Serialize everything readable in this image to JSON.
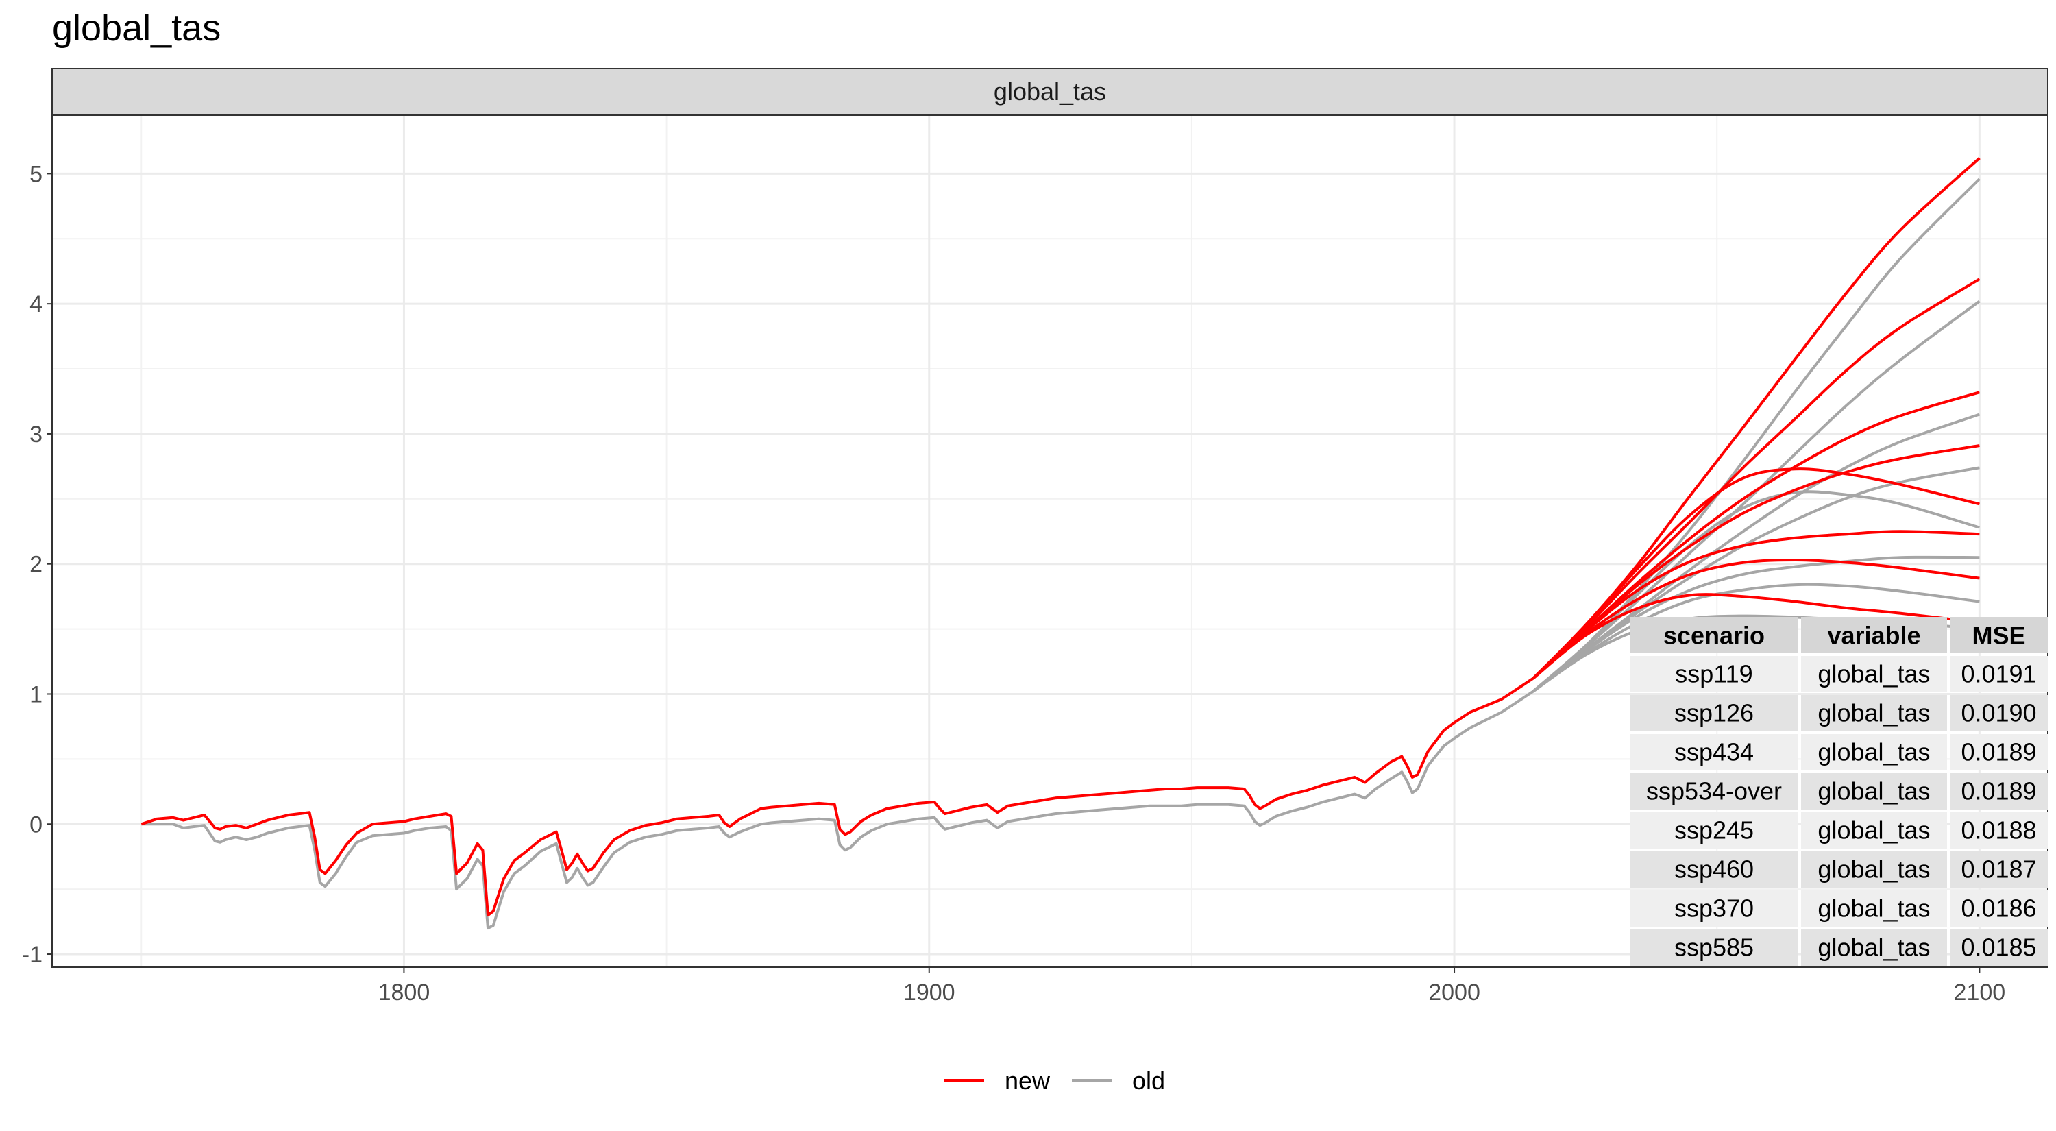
{
  "title": "global_tas",
  "chart_data": {
    "type": "line",
    "facet_label": "global_tas",
    "title": "global_tas",
    "xlabel": "",
    "ylabel": "",
    "xlim": [
      1733,
      2113
    ],
    "ylim": [
      -1.1,
      5.45
    ],
    "xticks": [
      1800,
      1900,
      2000,
      2100
    ],
    "yticks": [
      -1,
      0,
      1,
      2,
      3,
      4,
      5
    ],
    "grid": true,
    "legend_position": "bottom",
    "legend": [
      {
        "name": "new",
        "color": "#ff0000"
      },
      {
        "name": "old",
        "color": "#a6a6a6"
      }
    ],
    "historical": {
      "x": [
        1750,
        1753,
        1756,
        1758,
        1760,
        1762,
        1764,
        1765,
        1766,
        1768,
        1770,
        1772,
        1774,
        1776,
        1778,
        1780,
        1782,
        1783,
        1784,
        1785,
        1787,
        1789,
        1791,
        1794,
        1797,
        1800,
        1802,
        1805,
        1808,
        1809,
        1810,
        1812,
        1814,
        1815,
        1816,
        1817,
        1819,
        1821,
        1823,
        1826,
        1829,
        1830,
        1831,
        1832,
        1833,
        1834,
        1835,
        1836,
        1838,
        1840,
        1843,
        1846,
        1849,
        1852,
        1855,
        1858,
        1860,
        1861,
        1862,
        1864,
        1866,
        1868,
        1870,
        1873,
        1876,
        1879,
        1882,
        1883,
        1884,
        1885,
        1887,
        1889,
        1892,
        1895,
        1898,
        1901,
        1902,
        1903,
        1905,
        1908,
        1911,
        1912,
        1913,
        1915,
        1918,
        1921,
        1924,
        1927,
        1930,
        1933,
        1936,
        1939,
        1942,
        1945,
        1948,
        1951,
        1954,
        1957,
        1960,
        1961,
        1962,
        1963,
        1964,
        1966,
        1969,
        1972,
        1975,
        1978,
        1981,
        1983,
        1985,
        1988,
        1990,
        1991,
        1992,
        1993,
        1995,
        1998,
        2000,
        2003,
        2006,
        2009,
        2012,
        2015
      ],
      "new": [
        0.0,
        0.04,
        0.05,
        0.03,
        0.05,
        0.07,
        -0.03,
        -0.04,
        -0.02,
        -0.01,
        -0.03,
        0.0,
        0.03,
        0.05,
        0.07,
        0.08,
        0.09,
        -0.1,
        -0.35,
        -0.38,
        -0.28,
        -0.16,
        -0.07,
        0.0,
        0.01,
        0.02,
        0.04,
        0.06,
        0.08,
        0.06,
        -0.38,
        -0.3,
        -0.15,
        -0.2,
        -0.7,
        -0.67,
        -0.42,
        -0.28,
        -0.22,
        -0.12,
        -0.06,
        -0.2,
        -0.35,
        -0.3,
        -0.23,
        -0.3,
        -0.36,
        -0.34,
        -0.22,
        -0.12,
        -0.05,
        -0.01,
        0.01,
        0.04,
        0.05,
        0.06,
        0.07,
        0.01,
        -0.02,
        0.04,
        0.08,
        0.12,
        0.13,
        0.14,
        0.15,
        0.16,
        0.15,
        -0.04,
        -0.08,
        -0.06,
        0.02,
        0.07,
        0.12,
        0.14,
        0.16,
        0.17,
        0.12,
        0.08,
        0.1,
        0.13,
        0.15,
        0.12,
        0.09,
        0.14,
        0.16,
        0.18,
        0.2,
        0.21,
        0.22,
        0.23,
        0.24,
        0.25,
        0.26,
        0.27,
        0.27,
        0.28,
        0.28,
        0.28,
        0.27,
        0.22,
        0.15,
        0.12,
        0.14,
        0.19,
        0.23,
        0.26,
        0.3,
        0.33,
        0.36,
        0.32,
        0.39,
        0.48,
        0.52,
        0.45,
        0.36,
        0.38,
        0.56,
        0.72,
        0.78,
        0.86,
        0.91,
        0.96,
        1.04,
        1.12
      ],
      "old": [
        0.0,
        0.0,
        0.0,
        -0.03,
        -0.02,
        -0.01,
        -0.13,
        -0.14,
        -0.12,
        -0.1,
        -0.12,
        -0.1,
        -0.07,
        -0.05,
        -0.03,
        -0.02,
        -0.01,
        -0.2,
        -0.45,
        -0.48,
        -0.38,
        -0.25,
        -0.14,
        -0.09,
        -0.08,
        -0.07,
        -0.05,
        -0.03,
        -0.02,
        -0.05,
        -0.5,
        -0.42,
        -0.27,
        -0.32,
        -0.8,
        -0.78,
        -0.52,
        -0.38,
        -0.32,
        -0.21,
        -0.15,
        -0.3,
        -0.45,
        -0.41,
        -0.34,
        -0.41,
        -0.47,
        -0.45,
        -0.33,
        -0.22,
        -0.14,
        -0.1,
        -0.08,
        -0.05,
        -0.04,
        -0.03,
        -0.02,
        -0.07,
        -0.1,
        -0.06,
        -0.03,
        0.0,
        0.01,
        0.02,
        0.03,
        0.04,
        0.03,
        -0.16,
        -0.2,
        -0.18,
        -0.1,
        -0.05,
        0.0,
        0.02,
        0.04,
        0.05,
        0.0,
        -0.04,
        -0.02,
        0.01,
        0.03,
        0.0,
        -0.03,
        0.02,
        0.04,
        0.06,
        0.08,
        0.09,
        0.1,
        0.11,
        0.12,
        0.13,
        0.14,
        0.14,
        0.14,
        0.15,
        0.15,
        0.15,
        0.14,
        0.09,
        0.02,
        -0.01,
        0.01,
        0.06,
        0.1,
        0.13,
        0.17,
        0.2,
        0.23,
        0.2,
        0.27,
        0.35,
        0.4,
        0.33,
        0.24,
        0.27,
        0.45,
        0.6,
        0.66,
        0.74,
        0.8,
        0.86,
        0.94,
        1.02
      ]
    },
    "projection_x": [
      2015,
      2025,
      2035,
      2045,
      2055,
      2065,
      2075,
      2085,
      2100
    ],
    "scenarios": [
      {
        "name": "ssp119",
        "new": [
          1.12,
          1.45,
          1.66,
          1.76,
          1.75,
          1.71,
          1.66,
          1.62,
          1.55
        ],
        "old": [
          1.02,
          1.3,
          1.49,
          1.58,
          1.6,
          1.59,
          1.57,
          1.55,
          1.5
        ]
      },
      {
        "name": "ssp126",
        "new": [
          1.12,
          1.46,
          1.73,
          1.92,
          2.01,
          2.03,
          2.01,
          1.97,
          1.89
        ],
        "old": [
          1.02,
          1.31,
          1.55,
          1.72,
          1.8,
          1.84,
          1.83,
          1.79,
          1.71
        ]
      },
      {
        "name": "ssp434",
        "new": [
          1.12,
          1.48,
          1.8,
          2.02,
          2.14,
          2.2,
          2.23,
          2.25,
          2.23
        ],
        "old": [
          1.02,
          1.33,
          1.6,
          1.8,
          1.92,
          1.98,
          2.02,
          2.05,
          2.05
        ]
      },
      {
        "name": "ssp534-over",
        "new": [
          1.12,
          1.52,
          1.97,
          2.38,
          2.66,
          2.73,
          2.69,
          2.61,
          2.46
        ],
        "old": [
          1.02,
          1.37,
          1.77,
          2.15,
          2.43,
          2.55,
          2.53,
          2.46,
          2.28
        ]
      },
      {
        "name": "ssp245",
        "new": [
          1.12,
          1.48,
          1.84,
          2.14,
          2.39,
          2.57,
          2.71,
          2.81,
          2.91
        ],
        "old": [
          1.02,
          1.33,
          1.63,
          1.9,
          2.14,
          2.34,
          2.51,
          2.63,
          2.74
        ]
      },
      {
        "name": "ssp460",
        "new": [
          1.12,
          1.49,
          1.86,
          2.2,
          2.5,
          2.75,
          2.97,
          3.14,
          3.32
        ],
        "old": [
          1.02,
          1.34,
          1.65,
          1.96,
          2.25,
          2.52,
          2.75,
          2.94,
          3.15
        ]
      },
      {
        "name": "ssp370",
        "new": [
          1.12,
          1.51,
          1.93,
          2.33,
          2.74,
          3.12,
          3.5,
          3.82,
          4.19
        ],
        "old": [
          1.02,
          1.36,
          1.72,
          2.09,
          2.46,
          2.85,
          3.23,
          3.57,
          4.02
        ]
      },
      {
        "name": "ssp585",
        "new": [
          1.12,
          1.53,
          2.0,
          2.53,
          3.05,
          3.58,
          4.1,
          4.57,
          5.12
        ],
        "old": [
          1.02,
          1.37,
          1.8,
          2.27,
          2.79,
          3.33,
          3.85,
          4.35,
          4.96
        ]
      }
    ]
  },
  "mse_table": {
    "headers": [
      "scenario",
      "variable",
      "MSE"
    ],
    "rows": [
      [
        "ssp119",
        "global_tas",
        "0.0191"
      ],
      [
        "ssp126",
        "global_tas",
        "0.0190"
      ],
      [
        "ssp434",
        "global_tas",
        "0.0189"
      ],
      [
        "ssp534-over",
        "global_tas",
        "0.0189"
      ],
      [
        "ssp245",
        "global_tas",
        "0.0188"
      ],
      [
        "ssp460",
        "global_tas",
        "0.0187"
      ],
      [
        "ssp370",
        "global_tas",
        "0.0186"
      ],
      [
        "ssp585",
        "global_tas",
        "0.0185"
      ]
    ]
  }
}
